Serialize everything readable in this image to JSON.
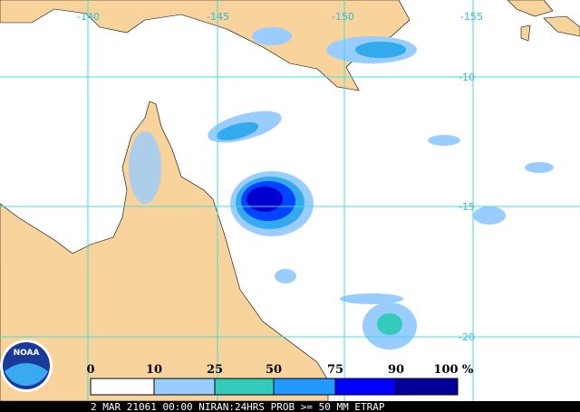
{
  "map": {
    "longitude_labels": [
      "-140",
      "-145",
      "-150",
      "-155"
    ],
    "latitude_labels": [
      "-10",
      "-15",
      "-20"
    ],
    "legend": {
      "labels": [
        "0",
        "10",
        "25",
        "50",
        "75",
        "90",
        "100"
      ],
      "unit": "%"
    },
    "caption": "2 MAR 21061 00:00 NIRAN:24HRS PROB >= 50 MM ETRAP",
    "logo": "NOAA"
  }
}
